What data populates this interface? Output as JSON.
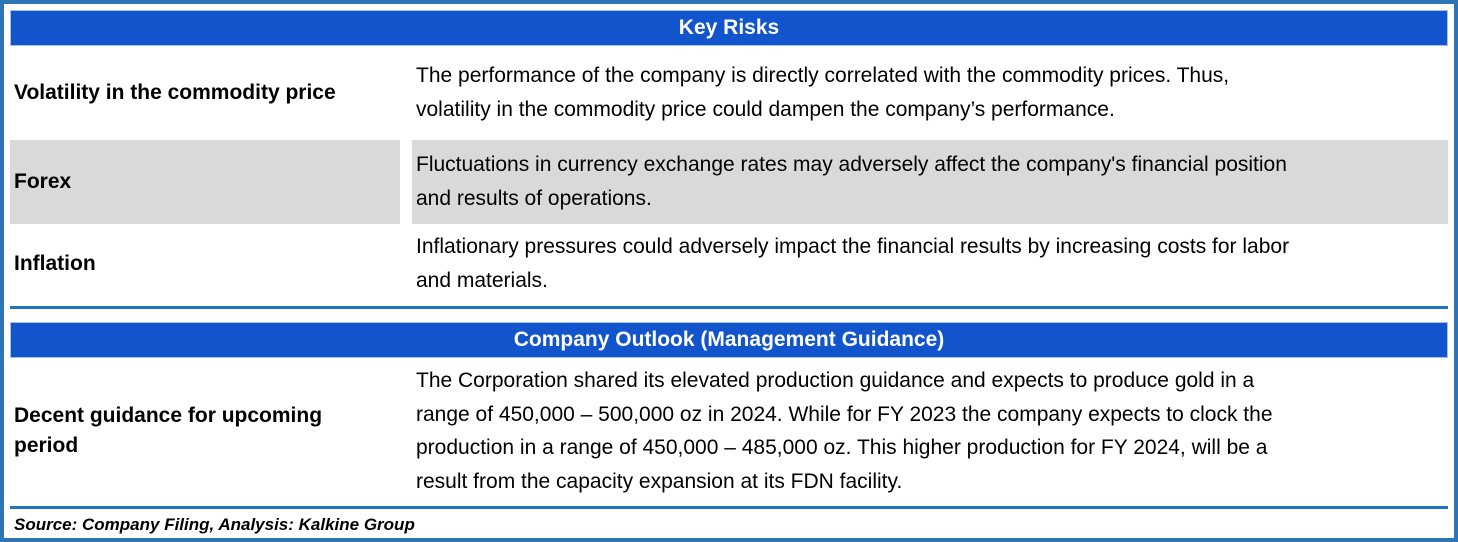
{
  "colors": {
    "header_bg": "#1154CC",
    "header_text": "#FFFFFF",
    "frame_border": "#2E75B6",
    "divider": "#2273C4",
    "shaded_row_bg": "#D9D9D9",
    "body_text": "#000000"
  },
  "sections": [
    {
      "title": "Key Risks",
      "rows": [
        {
          "label": "Volatility in the commodity price",
          "description": "The performance of the company is directly correlated with the commodity prices. Thus,\nvolatility in the commodity price could dampen the company’s performance.",
          "shaded": false
        },
        {
          "label": "Forex",
          "description": "Fluctuations in currency exchange rates may adversely affect the company's financial position\nand results of operations.",
          "shaded": true
        },
        {
          "label": "Inflation",
          "description": "Inflationary pressures could adversely impact the financial results by increasing costs for labor\nand materials.",
          "shaded": false
        }
      ]
    },
    {
      "title": "Company Outlook (Management Guidance)",
      "rows": [
        {
          "label": "Decent guidance for upcoming period",
          "description": "The Corporation shared its elevated production guidance and expects to produce gold in a\nrange of 450,000 – 500,000 oz in 2024. While for FY 2023 the company expects to clock the\nproduction in a range of 450,000 – 485,000 oz. This higher production for FY 2024, will be a\nresult from the capacity expansion at its FDN facility.",
          "shaded": false
        }
      ]
    }
  ],
  "footer": {
    "source_note": "Source: Company Filing, Analysis: Kalkine Group"
  }
}
